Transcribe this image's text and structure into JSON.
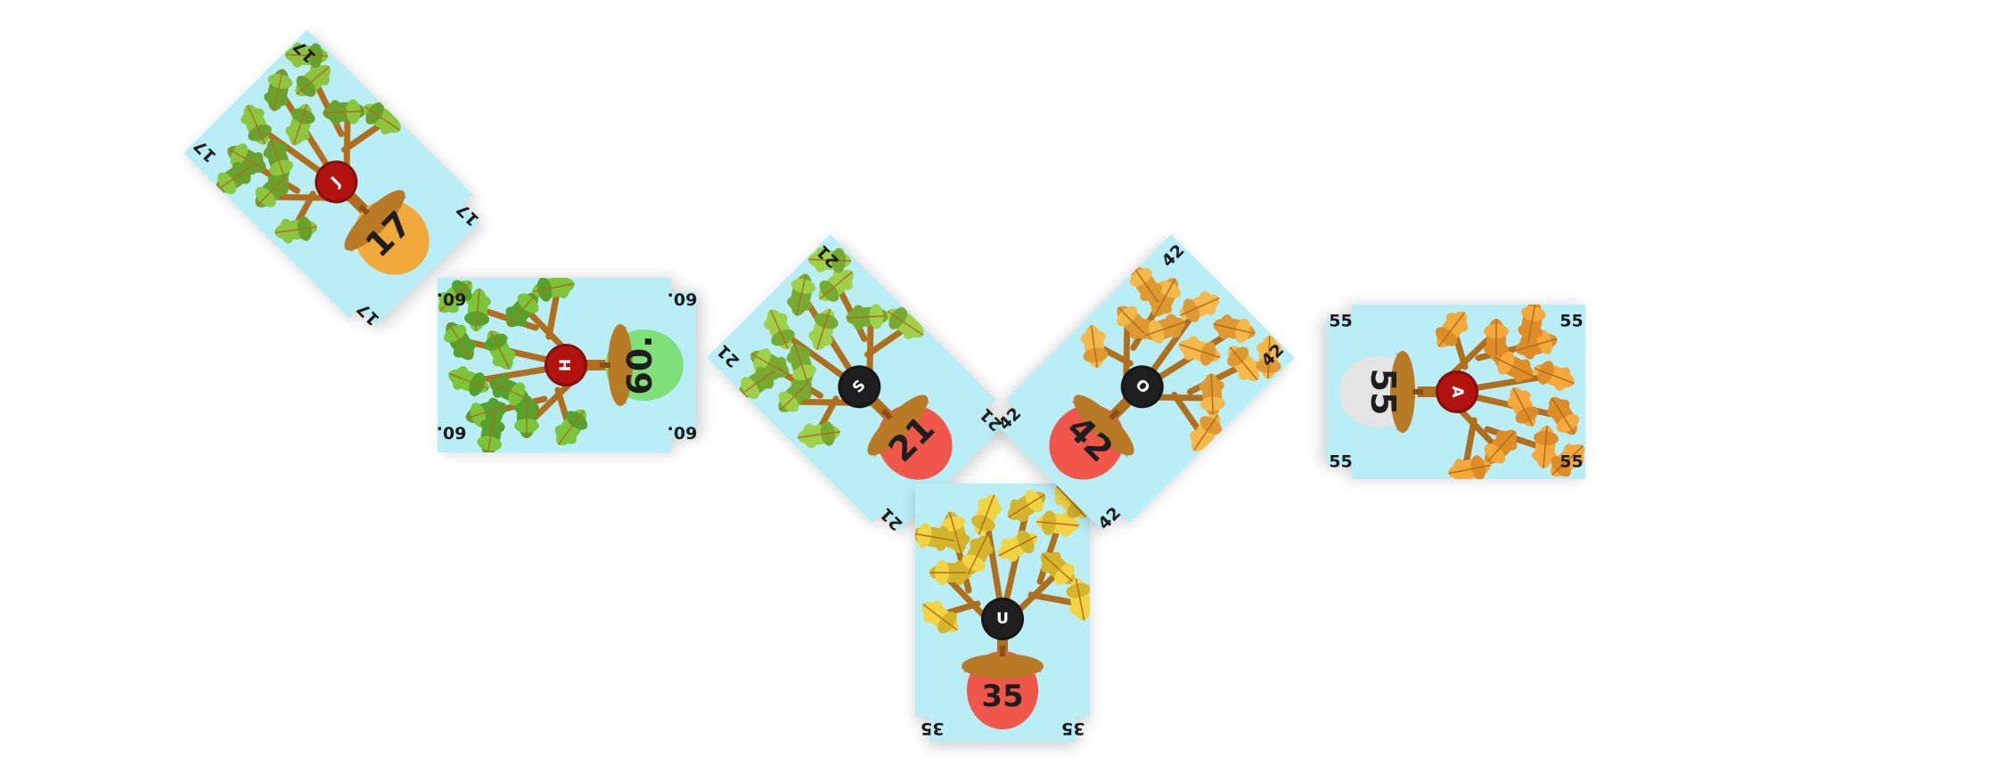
{
  "cards": [
    {
      "id": "17",
      "value": "17",
      "corner": "17",
      "token": "J",
      "token_color": "#b3130f",
      "acorn_color": "#f2a93b",
      "leaf_color": "#8cc63f",
      "leaf_shade": "#6aa12d",
      "bg": "#b9eef7"
    },
    {
      "id": "60",
      "value": "60.",
      "corner": "60.",
      "token": "H",
      "token_color": "#b3130f",
      "acorn_color": "#7fe07a",
      "leaf_color": "#7cc43a",
      "leaf_shade": "#57a02a",
      "bg": "#b9eef7"
    },
    {
      "id": "21",
      "value": "21",
      "corner": "21",
      "token": "S",
      "token_color": "#1e1e1e",
      "acorn_color": "#f0574a",
      "leaf_color": "#9fd04a",
      "leaf_shade": "#76aa30",
      "bg": "#b9eef7"
    },
    {
      "id": "35",
      "value": "35",
      "corner": "35",
      "token": "U",
      "token_color": "#1e1e1e",
      "acorn_color": "#f0574a",
      "leaf_color": "#f2d442",
      "leaf_shade": "#d4b42a",
      "bg": "#b9eef7"
    },
    {
      "id": "42",
      "value": "42",
      "corner": "42",
      "token": "O",
      "token_color": "#1e1e1e",
      "acorn_color": "#f0574a",
      "leaf_color": "#f5b84a",
      "leaf_shade": "#df9930",
      "bg": "#b9eef7"
    },
    {
      "id": "55",
      "value": "55",
      "corner": "55",
      "token": "A",
      "token_color": "#b3130f",
      "acorn_color": "#e4e4e4",
      "leaf_color": "#f5a93c",
      "leaf_shade": "#de8c28",
      "bg": "#b9eef7"
    }
  ]
}
